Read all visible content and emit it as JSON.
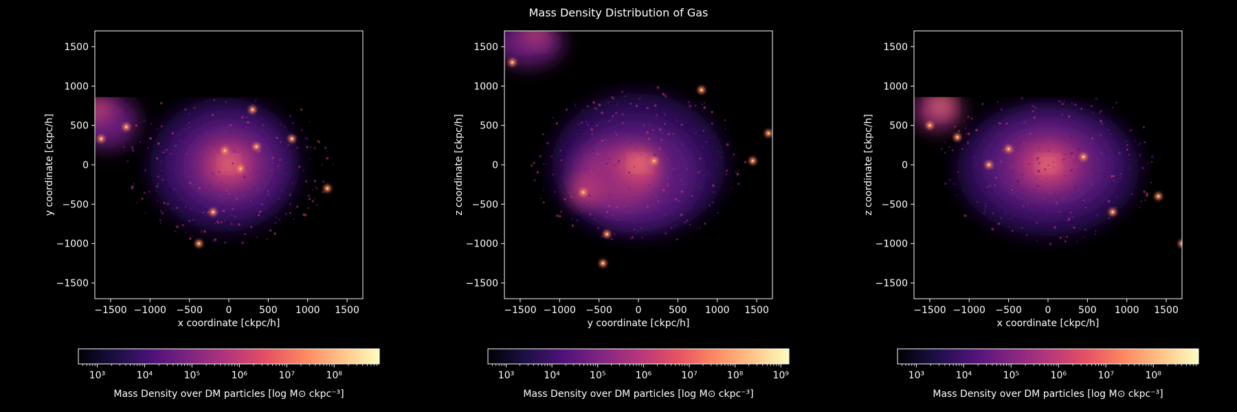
{
  "figure": {
    "title": "Mass Density Distribution of Gas"
  },
  "colormap": {
    "name": "magma",
    "stops": [
      "#000004",
      "#1c1044",
      "#4f127b",
      "#812581",
      "#b5367a",
      "#e55064",
      "#fb8761",
      "#fec287",
      "#fcfdbf"
    ]
  },
  "chart_data": [
    {
      "type": "heatmap",
      "title": "",
      "xlabel": "x coordinate [ckpc/h]",
      "ylabel": "y coordinate [ckpc/h]",
      "xlim": [
        -1700,
        1700
      ],
      "ylim": [
        -1700,
        1700
      ],
      "xticks": [
        -1500,
        -1000,
        -500,
        0,
        500,
        1000,
        1500
      ],
      "yticks": [
        -1500,
        -1000,
        -500,
        0,
        500,
        1000,
        1500
      ],
      "xtick_labels": [
        "−1500",
        "−1000",
        "−500",
        "0",
        "500",
        "1000",
        "1500"
      ],
      "ytick_labels": [
        "−1500",
        "−1000",
        "−500",
        "0",
        "500",
        "1000",
        "1500"
      ],
      "colorbar": {
        "label": "Mass Density over DM particles [log M⊙ ckpc⁻³]",
        "scale": "log",
        "range": [
          400,
          900000000
        ],
        "ticks": [
          1000,
          10000,
          100000,
          1000000,
          10000000,
          100000000
        ],
        "tick_labels": [
          "10³",
          "10⁴",
          "10⁵",
          "10⁶",
          "10⁷",
          "10⁸"
        ]
      }
    },
    {
      "type": "heatmap",
      "title": "",
      "xlabel": "y coordinate [ckpc/h]",
      "ylabel": "z coordinate [ckpc/h]",
      "xlim": [
        -1700,
        1700
      ],
      "ylim": [
        -1700,
        1700
      ],
      "xticks": [
        -1500,
        -1000,
        -500,
        0,
        500,
        1000,
        1500
      ],
      "yticks": [
        -1500,
        -1000,
        -500,
        0,
        500,
        1000,
        1500
      ],
      "xtick_labels": [
        "−1500",
        "−1000",
        "−500",
        "0",
        "500",
        "1000",
        "1500"
      ],
      "ytick_labels": [
        "−1500",
        "−1000",
        "−500",
        "0",
        "500",
        "1000",
        "1500"
      ],
      "colorbar": {
        "label": "Mass Density over DM particles [log M⊙ ckpc⁻³]",
        "scale": "log",
        "range": [
          400,
          1500000000
        ],
        "ticks": [
          1000,
          10000,
          100000,
          1000000,
          10000000,
          100000000,
          1000000000
        ],
        "tick_labels": [
          "10³",
          "10⁴",
          "10⁵",
          "10⁶",
          "10⁷",
          "10⁸",
          "10⁹"
        ]
      }
    },
    {
      "type": "heatmap",
      "title": "",
      "xlabel": "x coordinate [ckpc/h]",
      "ylabel": "z coordinate [ckpc/h]",
      "xlim": [
        -1700,
        1700
      ],
      "ylim": [
        -1700,
        1700
      ],
      "xticks": [
        -1500,
        -1000,
        -500,
        0,
        500,
        1000,
        1500
      ],
      "yticks": [
        -1500,
        -1000,
        -500,
        0,
        500,
        1000,
        1500
      ],
      "xtick_labels": [
        "−1500",
        "−1000",
        "−500",
        "0",
        "500",
        "1000",
        "1500"
      ],
      "ytick_labels": [
        "−1500",
        "−1000",
        "−500",
        "0",
        "500",
        "1000",
        "1500"
      ],
      "colorbar": {
        "label": "Mass Density over DM particles [log M⊙ ckpc⁻³]",
        "scale": "log",
        "range": [
          400,
          900000000
        ],
        "ticks": [
          1000,
          10000,
          100000,
          1000000,
          10000000,
          100000000
        ],
        "tick_labels": [
          "10³",
          "10⁴",
          "10⁵",
          "10⁶",
          "10⁷",
          "10⁸"
        ]
      }
    }
  ]
}
